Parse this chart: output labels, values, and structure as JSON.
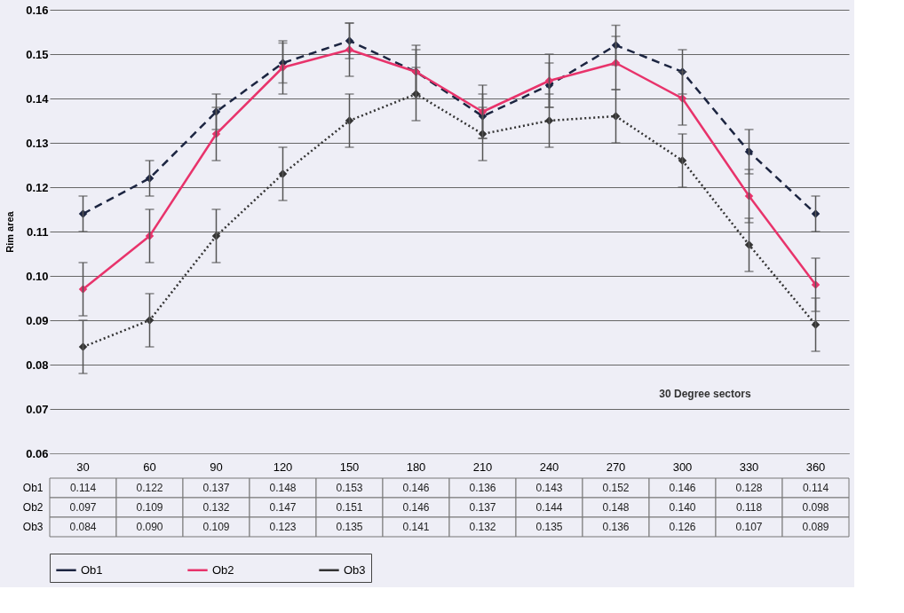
{
  "chart_data": {
    "type": "line",
    "xlabel": "30 Degree sectors",
    "ylabel": "Rim area",
    "categories": [
      "30",
      "60",
      "90",
      "120",
      "150",
      "180",
      "210",
      "240",
      "270",
      "300",
      "330",
      "360"
    ],
    "series": [
      {
        "name": "Ob1",
        "color": "#1c2541",
        "line_style": "dashed",
        "values": [
          0.114,
          0.122,
          0.137,
          0.148,
          0.153,
          0.146,
          0.136,
          0.143,
          0.152,
          0.146,
          0.128,
          0.114
        ],
        "errors": [
          0.004,
          0.004,
          0.004,
          0.0045,
          0.004,
          0.005,
          0.005,
          0.005,
          0.0045,
          0.005,
          0.005,
          0.004
        ],
        "value_labels": [
          "0.114",
          "0.122",
          "0.137",
          "0.148",
          "0.153",
          "0.146",
          "0.136",
          "0.143",
          "0.152",
          "0.146",
          "0.128",
          "0.114"
        ]
      },
      {
        "name": "Ob2",
        "color": "#e8336b",
        "line_style": "solid",
        "values": [
          0.097,
          0.109,
          0.132,
          0.147,
          0.151,
          0.146,
          0.137,
          0.144,
          0.148,
          0.14,
          0.118,
          0.098
        ],
        "errors": [
          0.006,
          0.006,
          0.006,
          0.006,
          0.006,
          0.006,
          0.006,
          0.006,
          0.006,
          0.006,
          0.006,
          0.006
        ],
        "value_labels": [
          "0.097",
          "0.109",
          "0.132",
          "0.147",
          "0.151",
          "0.146",
          "0.137",
          "0.144",
          "0.148",
          "0.140",
          "0.118",
          "0.098"
        ]
      },
      {
        "name": "Ob3",
        "color": "#333333",
        "line_style": "dotted",
        "values": [
          0.084,
          0.09,
          0.109,
          0.123,
          0.135,
          0.141,
          0.132,
          0.135,
          0.136,
          0.126,
          0.107,
          0.089
        ],
        "errors": [
          0.006,
          0.006,
          0.006,
          0.006,
          0.006,
          0.006,
          0.006,
          0.006,
          0.006,
          0.006,
          0.006,
          0.006
        ],
        "value_labels": [
          "0.084",
          "0.090",
          "0.109",
          "0.123",
          "0.135",
          "0.141",
          "0.132",
          "0.135",
          "0.136",
          "0.126",
          "0.107",
          "0.089"
        ]
      }
    ],
    "ylim": [
      0.06,
      0.16
    ],
    "yticks": [
      {
        "value": 0.06,
        "label": "0.06"
      },
      {
        "value": 0.07,
        "label": "0.07"
      },
      {
        "value": 0.08,
        "label": "0.08"
      },
      {
        "value": 0.09,
        "label": "0.09"
      },
      {
        "value": 0.1,
        "label": "0.10"
      },
      {
        "value": 0.11,
        "label": "0.11"
      },
      {
        "value": 0.12,
        "label": "0.12"
      },
      {
        "value": 0.13,
        "label": "0.13"
      },
      {
        "value": 0.14,
        "label": "0.14"
      },
      {
        "value": 0.15,
        "label": "0.15"
      },
      {
        "value": 0.16,
        "label": "0.16"
      }
    ],
    "grid": "y",
    "marker": "diamond",
    "legend": "bottom"
  }
}
